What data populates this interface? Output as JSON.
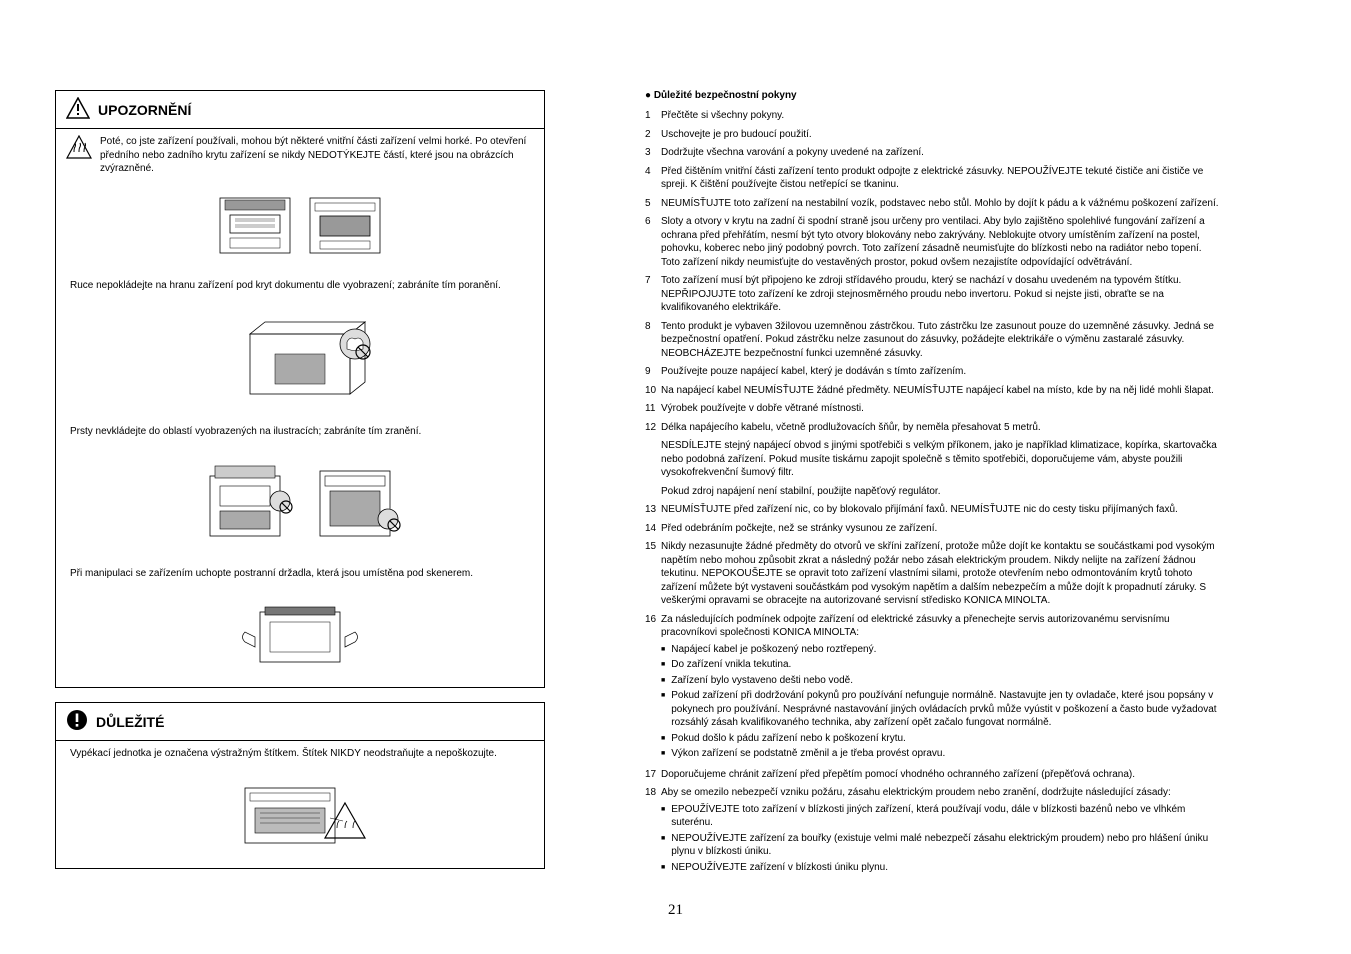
{
  "page_number": "21",
  "left": {
    "upozorneni": {
      "title": "UPOZORNĚNÍ",
      "warning_text": "Poté, co jste zařízení používali, mohou být některé vnitřní části zařízení velmi horké. Po otevření předního nebo zadního krytu zařízení se nikdy NEDOTÝKEJTE částí, které jsou na obrázcích zvýrazněné.",
      "section_hands": "Ruce nepokládejte na hranu zařízení pod kryt dokumentu dle vyobrazení; zabráníte tím poranění.",
      "section_fingers": "Prsty nevkládejte do oblastí vyobrazených na ilustracích; zabráníte tím zranění.",
      "section_grip": "Při manipulaci se zařízením uchopte postranní držadla, která jsou umístěna pod skenerem."
    },
    "dulezite": {
      "title": "DŮLEŽITÉ",
      "text": "Vypékací jednotka je označena výstražným štítkem. Štítek NIKDY neodstraňujte a nepoškozujte."
    }
  },
  "right": {
    "heading": "● Důležité bezpečnostní pokyny",
    "items": [
      {
        "n": "1",
        "text": "Přečtěte si všechny pokyny."
      },
      {
        "n": "2",
        "text": "Uschovejte je pro budoucí použití."
      },
      {
        "n": "3",
        "text": "Dodržujte všechna varování a pokyny uvedené na zařízení."
      },
      {
        "n": "4",
        "text": "Před čištěním vnitřní části zařízení tento produkt odpojte z elektrické zásuvky. NEPOUŽÍVEJTE tekuté čističe ani čističe ve spreji. K čištění používejte čistou netřepící se tkaninu."
      },
      {
        "n": "5",
        "text": "NEUMÍSŤUJTE toto zařízení na nestabilní vozík, podstavec nebo stůl. Mohlo by dojít k pádu a k vážnému poškození zařízení."
      },
      {
        "n": "6",
        "text": "Sloty a otvory v krytu na zadní či spodní straně jsou určeny pro ventilaci. Aby bylo zajištěno spolehlivé fungování zařízení a ochrana před přehřátím, nesmí být tyto otvory blokovány nebo zakrývány. Neblokujte otvory umístěním zařízení na postel, pohovku, koberec nebo jiný podobný povrch. Toto zařízení zásadně neumisťujte do blízkosti nebo na radiátor nebo topení. Toto zařízení nikdy neumisťujte do vestavěných prostor, pokud ovšem nezajistíte odpovídající odvětrávání."
      },
      {
        "n": "7",
        "text": "Toto zařízení musí být připojeno ke zdroji střídavého proudu, který se nachází v dosahu uvedeném na typovém štítku. NEPŘIPOJUJTE toto zařízení ke zdroji stejnosměrného proudu nebo invertoru. Pokud si nejste jisti, obraťte se na kvalifikovaného elektrikáře."
      },
      {
        "n": "8",
        "text": "Tento produkt je vybaven 3žilovou uzemněnou zástrčkou. Tuto zástrčku lze zasunout pouze do uzemněné zásuvky. Jedná se bezpečnostní opatření. Pokud zástrčku nelze zasunout do zásuvky, požádejte elektrikáře o výměnu zastaralé zásuvky. NEOBCHÁZEJTE bezpečnostní funkci uzemněné zásuvky."
      },
      {
        "n": "9",
        "text": "Používejte pouze napájecí kabel, který je dodáván s tímto zařízením."
      },
      {
        "n": "10",
        "text": "Na napájecí kabel NEUMÍSŤUJTE žádné předměty. NEUMÍSŤUJTE napájecí kabel na místo, kde by na něj lidé mohli šlapat."
      },
      {
        "n": "11",
        "text": "Výrobek používejte v dobře větrané místnosti."
      },
      {
        "n": "12",
        "text": "Délka napájecího kabelu, včetně prodlužovacích šňůr, by neměla přesahovat 5 metrů.",
        "paras": [
          "NESDÍLEJTE stejný napájecí obvod s jinými spotřebiči s velkým příkonem, jako je například klimatizace, kopírka, skartovačka nebo podobná zařízení. Pokud musíte tiskárnu zapojit společně s těmito spotřebiči, doporučujeme vám, abyste použili vysokofrekvenční šumový filtr.",
          "Pokud zdroj napájení není stabilní, použijte napěťový regulátor."
        ]
      },
      {
        "n": "13",
        "text": "NEUMÍSŤUJTE před zařízení nic, co by blokovalo přijímání faxů. NEUMÍSŤUJTE nic do cesty tisku přijímaných faxů."
      },
      {
        "n": "14",
        "text": "Před odebráním počkejte, než se stránky vysunou ze zařízení."
      },
      {
        "n": "15",
        "text": "Nikdy nezasunujte žádné předměty do otvorů ve skříni zařízení, protože může dojít ke kontaktu se součástkami pod vysokým napětím nebo mohou způsobit zkrat a následný požár nebo zásah elektrickým proudem. Nikdy nelijte na zařízení žádnou tekutinu. NEPOKOUŠEJTE se opravit toto zařízení vlastními silami, protože otevřením nebo odmontováním krytů tohoto zařízení můžete být vystaveni součástkám pod vysokým napětím a dalším nebezpečím a může dojít k propadnutí záruky. S veškerými opravami se obracejte na autorizované servisní středisko KONICA MINOLTA."
      },
      {
        "n": "16",
        "text": "Za následujících podmínek odpojte zařízení od elektrické zásuvky a přenechejte servis autorizovanému servisnímu pracovníkovi společnosti KONICA MINOLTA:",
        "bullets": [
          "Napájecí kabel je poškozený nebo roztřepený.",
          "Do zařízení vnikla tekutina.",
          "Zařízení bylo vystaveno dešti nebo vodě.",
          "Pokud zařízení při dodržování pokynů pro používání nefunguje normálně. Nastavujte jen ty ovladače, které jsou popsány v pokynech pro používání. Nesprávné nastavování jiných ovládacích prvků může vyústit v poškození a často bude vyžadovat rozsáhlý zásah kvalifikovaného technika, aby zařízení opět začalo fungovat normálně.",
          "Pokud došlo k pádu zařízení nebo k poškození krytu.",
          "Výkon zařízení se podstatně změnil a je třeba provést opravu."
        ]
      },
      {
        "n": "17",
        "text": "Doporučujeme chránit zařízení před přepětím pomocí vhodného ochranného zařízení (přepěťová ochrana)."
      },
      {
        "n": "18",
        "text": "Aby se omezilo nebezpečí vzniku požáru, zásahu elektrickým proudem nebo zranění, dodržujte následující zásady:",
        "bullets": [
          "EPOUŽÍVEJTE toto zařízení v blízkosti jiných zařízení, která používají vodu, dále v blízkosti bazénů nebo ve vlhkém suterénu.",
          "NEPOUŽÍVEJTE zařízení za bouřky (existuje velmi malé nebezpečí zásahu elektrickým proudem) nebo pro hlášení úniku plynu v blízkosti úniku.",
          "NEPOUŽÍVEJTE zařízení v blízkosti úniku plynu."
        ]
      }
    ]
  }
}
